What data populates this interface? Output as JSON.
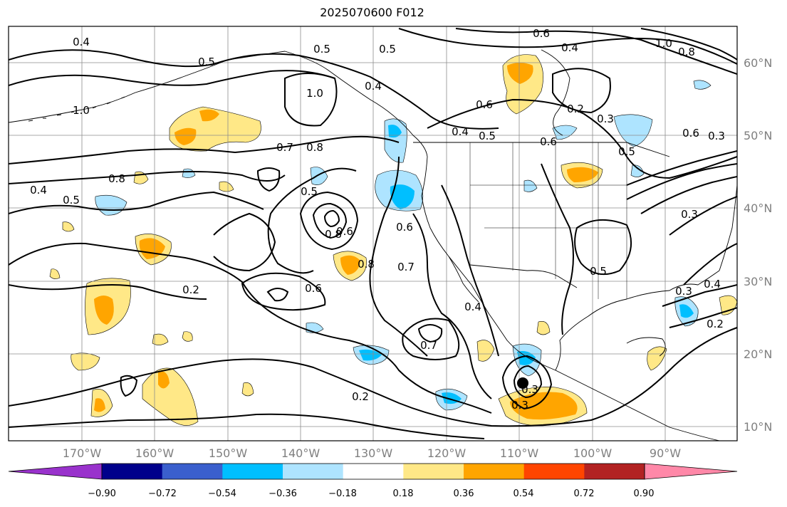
{
  "title": "2025070600 F012",
  "latitude_labels": [
    "60°N",
    "50°N",
    "40°N",
    "30°N",
    "20°N",
    "10°N"
  ],
  "longitude_labels": [
    "170°W",
    "160°W",
    "150°W",
    "140°W",
    "130°W",
    "120°W",
    "110°W",
    "100°W",
    "90°W"
  ],
  "colorbar": {
    "ticks": [
      "−0.90",
      "−0.72",
      "−0.54",
      "−0.36",
      "−0.18",
      "0.18",
      "0.36",
      "0.54",
      "0.72",
      "0.90"
    ],
    "colors": [
      "#9932cc",
      "#00008b",
      "#3a5fcd",
      "#00bfff",
      "#aee4ff",
      "#ffffff",
      "#ffe887",
      "#ffa500",
      "#ff4500",
      "#b22222",
      "#ff88a8"
    ]
  },
  "contour_labels": [
    "0.4",
    "0.5",
    "0.5",
    "0.6",
    "1.0",
    "0.8",
    "0.4",
    "0.5",
    "0.4",
    "1.0",
    "1.0",
    "0.6",
    "0.2",
    "0.3",
    "0.4",
    "0.5",
    "0.6",
    "0.7",
    "0.8",
    "0.8",
    "0.6",
    "0.5",
    "0.3",
    "0.4",
    "0.5",
    "0.8",
    "0.5",
    "0.6",
    "0.3",
    "0.6",
    "0.7",
    "0.6",
    "0.4",
    "0.2",
    "0.3",
    "0.2",
    "0.7",
    "0.8",
    "0.5",
    "0.3",
    "0.2",
    "0.4",
    "0.3"
  ],
  "shading_colors": {
    "light_yellow": "#ffe887",
    "orange": "#ffa500",
    "light_blue": "#aee4ff",
    "blue": "#00bfff"
  }
}
